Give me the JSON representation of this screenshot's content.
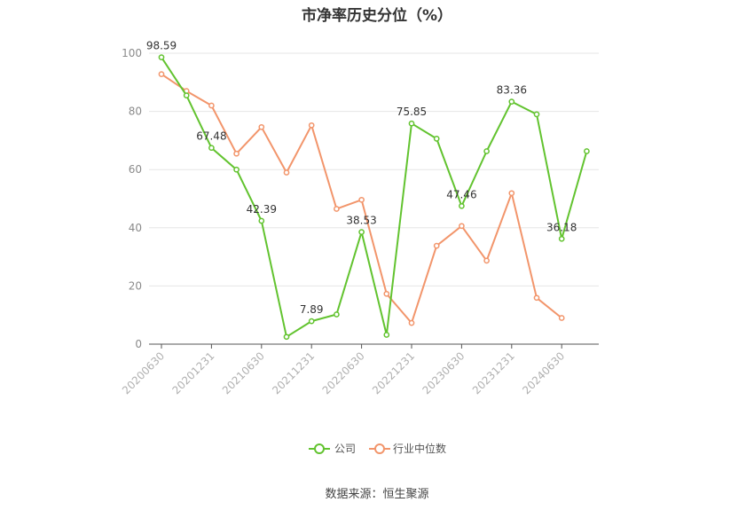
{
  "title": "市净率历史分位（%）",
  "source": "数据来源：恒生聚源",
  "chart_data": {
    "type": "line",
    "title": "市净率历史分位（%）",
    "ylim": [
      0,
      100
    ],
    "y_ticks": [
      0,
      20,
      40,
      60,
      80,
      100
    ],
    "x_tick_labels": [
      "20200630",
      "20201231",
      "20210630",
      "20211231",
      "20220630",
      "20221231",
      "20230630",
      "20231231",
      "20240630"
    ],
    "x": [
      "20200630",
      "20200930",
      "20201231",
      "20210331",
      "20210630",
      "20210930",
      "20211231",
      "20220331",
      "20220630",
      "20220930",
      "20221231",
      "20230331",
      "20230630",
      "20230930",
      "20231231",
      "20240331",
      "20240630",
      "20240930"
    ],
    "grid": true,
    "legend": "bottom",
    "series": [
      {
        "name": "公司",
        "color": "#62c32f",
        "values": [
          98.59,
          85.5,
          67.48,
          60.0,
          42.39,
          2.5,
          7.89,
          10.2,
          38.53,
          3.2,
          75.85,
          70.6,
          47.46,
          66.3,
          83.36,
          79.0,
          36.18,
          66.3
        ],
        "labels": [
          {
            "index": 0,
            "text": "98.59"
          },
          {
            "index": 2,
            "text": "67.48"
          },
          {
            "index": 4,
            "text": "42.39"
          },
          {
            "index": 6,
            "text": "7.89"
          },
          {
            "index": 8,
            "text": "38.53"
          },
          {
            "index": 10,
            "text": "75.85"
          },
          {
            "index": 12,
            "text": "47.46"
          },
          {
            "index": 14,
            "text": "83.36"
          },
          {
            "index": 16,
            "text": "36.18"
          }
        ]
      },
      {
        "name": "行业中位数",
        "color": "#f2956b",
        "values": [
          92.8,
          87.0,
          82.0,
          65.5,
          74.6,
          59.0,
          75.2,
          46.5,
          49.6,
          17.3,
          7.3,
          33.8,
          40.6,
          28.7,
          51.9,
          15.9,
          9.0,
          null
        ]
      }
    ]
  }
}
